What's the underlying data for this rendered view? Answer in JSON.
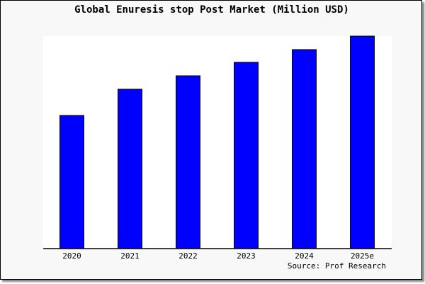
{
  "chart_data": {
    "type": "bar",
    "title": "Global Enuresis stop Post Market (Million USD)",
    "categories": [
      "2020",
      "2021",
      "2022",
      "2023",
      "2024",
      "2025e"
    ],
    "values": [
      188,
      225,
      244,
      263,
      281,
      300
    ],
    "ylim": [
      0,
      300
    ],
    "xlabel": "",
    "ylabel": "",
    "grid": false,
    "bar_color": "#0000ff",
    "source": "Source: Prof Research"
  }
}
